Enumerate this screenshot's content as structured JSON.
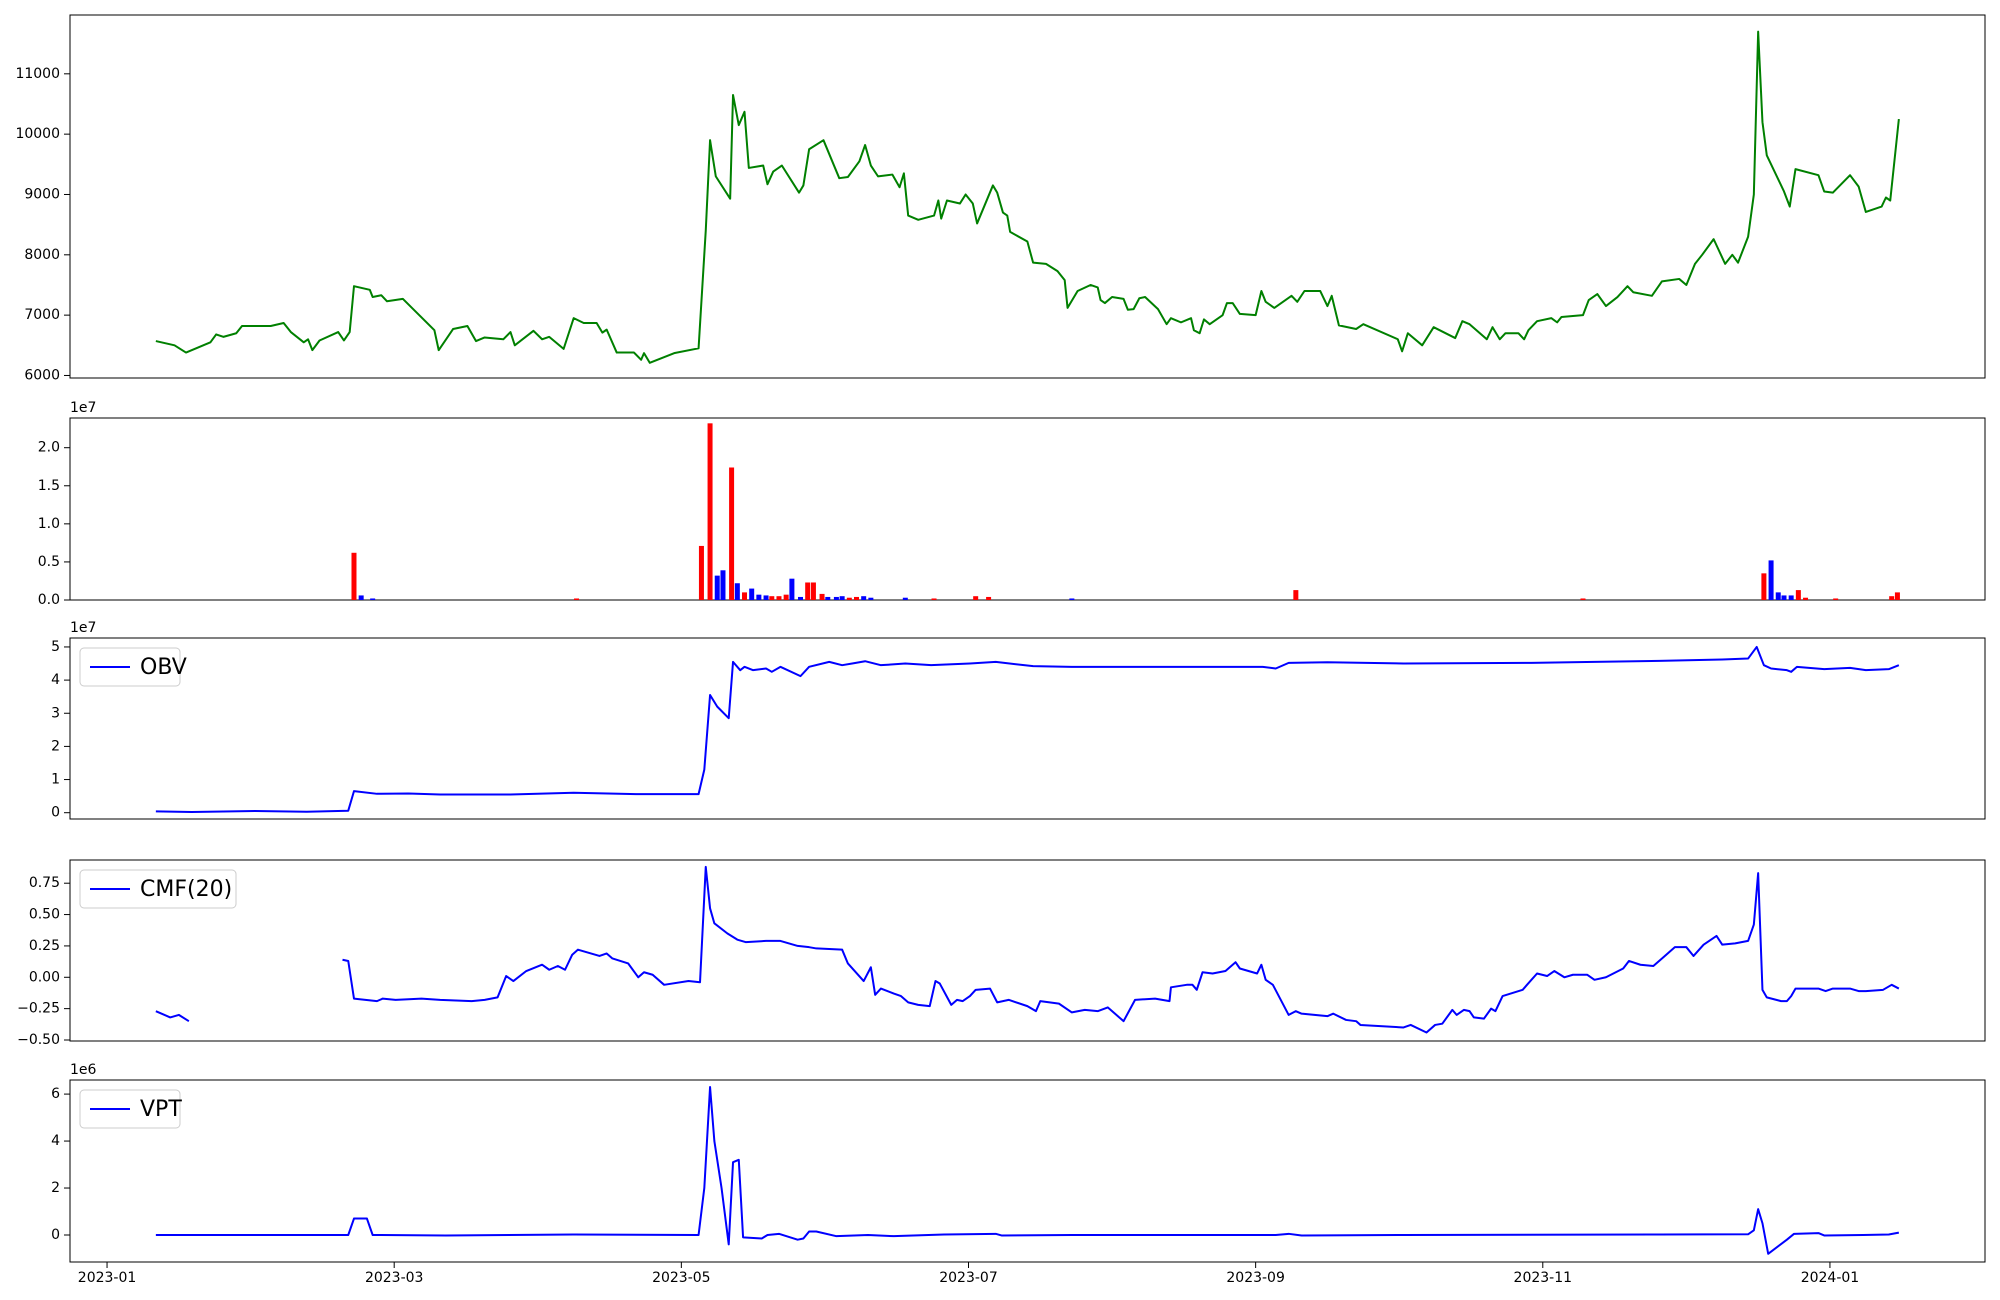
{
  "chart_data": [
    {
      "type": "line",
      "color": "#008000",
      "x": [
        0.34,
        0.47,
        0.55,
        0.72,
        0.76,
        0.81,
        0.9,
        0.94,
        1.14,
        1.23,
        1.28,
        1.37,
        1.4,
        1.43,
        1.48,
        1.61,
        1.65,
        1.69,
        1.72,
        1.83,
        1.85,
        1.91,
        1.95,
        2.06,
        2.28,
        2.31,
        2.41,
        2.51,
        2.57,
        2.63,
        2.76,
        2.81,
        2.84,
        2.97,
        3.03,
        3.08,
        3.18,
        3.25,
        3.32,
        3.41,
        3.45,
        3.48,
        3.55,
        3.67,
        3.72,
        3.74,
        3.78,
        3.95,
        4.12,
        4.17,
        4.2,
        4.24,
        4.34,
        4.36,
        4.4,
        4.44,
        4.47,
        4.57,
        4.6,
        4.64,
        4.7,
        4.82,
        4.85,
        4.89,
        4.99,
        5.1,
        5.16,
        5.24,
        5.28,
        5.32,
        5.37,
        5.47,
        5.52,
        5.55,
        5.58,
        5.65,
        5.76,
        5.79,
        5.81,
        5.85,
        5.94,
        5.98,
        6.03,
        6.06,
        6.17,
        6.2,
        6.24,
        6.27,
        6.29,
        6.41,
        6.45,
        6.54,
        6.62,
        6.67,
        6.69,
        6.76,
        6.85,
        6.9,
        6.92,
        6.95,
        7.0,
        7.08,
        7.11,
        7.15,
        7.19,
        7.23,
        7.32,
        7.38,
        7.41,
        7.48,
        7.55,
        7.57,
        7.61,
        7.64,
        7.68,
        7.77,
        7.8,
        7.84,
        7.89,
        8.0,
        8.04,
        8.07,
        8.13,
        8.25,
        8.29,
        8.34,
        8.45,
        8.5,
        8.53,
        8.58,
        8.7,
        8.75,
        8.99,
        9.02,
        9.06,
        9.16,
        9.24,
        9.39,
        9.44,
        9.49,
        9.61,
        9.65,
        9.7,
        9.74,
        9.83,
        9.87,
        9.9,
        9.96,
        10.06,
        10.1,
        10.13,
        10.28,
        10.32,
        10.38,
        10.44,
        10.52,
        10.59,
        10.63,
        10.76,
        10.83,
        10.95,
        11.0,
        11.06,
        11.11,
        11.19,
        11.27,
        11.32,
        11.36,
        11.43,
        11.47,
        11.5,
        11.53,
        11.56,
        11.68,
        11.72,
        11.76,
        11.92,
        11.96,
        12.02,
        12.14,
        12.2,
        12.25,
        12.36,
        12.39,
        12.42,
        12.48
      ],
      "values": [
        6570,
        6500,
        6380,
        6550,
        6680,
        6640,
        6700,
        6820,
        6820,
        6870,
        6720,
        6550,
        6600,
        6420,
        6580,
        6720,
        6580,
        6720,
        7480,
        7420,
        7300,
        7330,
        7230,
        7270,
        6750,
        6420,
        6770,
        6820,
        6570,
        6630,
        6600,
        6720,
        6500,
        6740,
        6600,
        6640,
        6440,
        6950,
        6870,
        6870,
        6710,
        6760,
        6380,
        6380,
        6260,
        6370,
        6210,
        6370,
        6450,
        8400,
        9900,
        9300,
        8930,
        10650,
        10150,
        10370,
        9440,
        9480,
        9170,
        9380,
        9480,
        9030,
        9150,
        9750,
        9900,
        9270,
        9290,
        9550,
        9820,
        9480,
        9300,
        9330,
        9120,
        9350,
        8650,
        8580,
        8650,
        8900,
        8600,
        8900,
        8850,
        9000,
        8850,
        8520,
        9150,
        9030,
        8700,
        8650,
        8380,
        8220,
        7870,
        7850,
        7730,
        7580,
        7120,
        7400,
        7500,
        7460,
        7250,
        7200,
        7300,
        7270,
        7090,
        7100,
        7280,
        7300,
        7100,
        6850,
        6950,
        6880,
        6950,
        6750,
        6700,
        6930,
        6850,
        7000,
        7200,
        7200,
        7020,
        7000,
        7400,
        7220,
        7120,
        7320,
        7220,
        7400,
        7400,
        7150,
        7320,
        6830,
        6770,
        6850,
        6600,
        6400,
        6700,
        6500,
        6800,
        6620,
        6900,
        6850,
        6600,
        6800,
        6600,
        6700,
        6700,
        6600,
        6750,
        6900,
        6950,
        6880,
        6970,
        7000,
        7250,
        7350,
        7150,
        7300,
        7480,
        7380,
        7320,
        7560,
        7600,
        7500,
        7850,
        8000,
        8260,
        7850,
        8000,
        7870,
        8300,
        9000,
        11700,
        10200,
        9650,
        9050,
        8800,
        9420,
        9320,
        9050,
        9030,
        9320,
        9130,
        8710,
        8800,
        8950,
        8900,
        10250
      ],
      "xlim": [
        -0.258,
        13.08
      ],
      "ylim": [
        5958,
        11975
      ],
      "yticks": [
        6000,
        7000,
        8000,
        9000,
        10000,
        11000
      ]
    },
    {
      "type": "bar",
      "y_offset_label": "1e7",
      "x": [
        1.72,
        1.77,
        1.85,
        3.27,
        4.14,
        4.2,
        4.25,
        4.29,
        4.35,
        4.39,
        4.44,
        4.49,
        4.54,
        4.59,
        4.63,
        4.68,
        4.73,
        4.77,
        4.83,
        4.88,
        4.92,
        4.98,
        5.02,
        5.08,
        5.12,
        5.17,
        5.22,
        5.27,
        5.32,
        5.56,
        5.76,
        6.05,
        6.14,
        6.72,
        8.28,
        10.28,
        11.54,
        11.59,
        11.64,
        11.68,
        11.73,
        11.78,
        11.83,
        12.04,
        12.43,
        12.47
      ],
      "values": [
        6200000,
        600000,
        200000,
        200000,
        7100000,
        23200000,
        3200000,
        3900000,
        17400000,
        2200000,
        1000000,
        1500000,
        700000,
        600000,
        500000,
        500000,
        700000,
        2800000,
        400000,
        2300000,
        2300000,
        800000,
        400000,
        400000,
        500000,
        300000,
        400000,
        500000,
        300000,
        300000,
        200000,
        500000,
        400000,
        200000,
        1300000,
        200000,
        3500000,
        5200000,
        1000000,
        600000,
        600000,
        1300000,
        300000,
        200000,
        500000,
        1000000
      ],
      "colors": [
        "red",
        "blue",
        "blue",
        "red",
        "red",
        "red",
        "blue",
        "blue",
        "red",
        "blue",
        "red",
        "blue",
        "blue",
        "blue",
        "red",
        "red",
        "red",
        "blue",
        "blue",
        "red",
        "red",
        "red",
        "blue",
        "blue",
        "blue",
        "red",
        "red",
        "blue",
        "blue",
        "blue",
        "red",
        "red",
        "red",
        "blue",
        "red",
        "red",
        "red",
        "blue",
        "blue",
        "blue",
        "blue",
        "red",
        "red",
        "red",
        "red",
        "red"
      ],
      "xlim": [
        -0.258,
        13.08
      ],
      "ylim": [
        0,
        23900000
      ],
      "yticks": [
        {
          "value": 0,
          "label": "0.0"
        },
        {
          "value": 5000000,
          "label": "0.5"
        },
        {
          "value": 10000000,
          "label": "1.0"
        },
        {
          "value": 15000000,
          "label": "1.5"
        },
        {
          "value": 20000000,
          "label": "2.0"
        }
      ]
    },
    {
      "type": "line",
      "y_offset_label": "1e7",
      "legend": "upper left",
      "x": [
        0.34,
        0.59,
        1.03,
        1.39,
        1.68,
        1.72,
        1.88,
        2.1,
        2.32,
        2.81,
        3.25,
        3.7,
        4.12,
        4.16,
        4.2,
        4.25,
        4.33,
        4.36,
        4.41,
        4.44,
        4.5,
        4.59,
        4.63,
        4.69,
        4.83,
        4.89,
        5.03,
        5.12,
        5.19,
        5.28,
        5.39,
        5.56,
        5.74,
        6.01,
        6.19,
        6.45,
        6.72,
        7.25,
        8.05,
        8.14,
        8.23,
        8.5,
        9.03,
        9.92,
        10.36,
        10.81,
        11.25,
        11.43,
        11.49,
        11.54,
        11.59,
        11.7,
        11.73,
        11.77,
        11.96,
        12.14,
        12.25,
        12.41,
        12.48
      ],
      "series": [
        {
          "name": "OBV",
          "color": "#0000ff",
          "values": [
            400000,
            200000,
            500000,
            300000,
            600000,
            6500000,
            5700000,
            5800000,
            5500000,
            5500000,
            6000000,
            5600000,
            5600000,
            13000000,
            35500000,
            32000000,
            28500000,
            45500000,
            43000000,
            44000000,
            43000000,
            43500000,
            42500000,
            44000000,
            41200000,
            44000000,
            45500000,
            44500000,
            45000000,
            45700000,
            44500000,
            45000000,
            44500000,
            45000000,
            45500000,
            44200000,
            44000000,
            44000000,
            44000000,
            43500000,
            45200000,
            45400000,
            45000000,
            45200000,
            45500000,
            45800000,
            46200000,
            46500000,
            50000000,
            44500000,
            43500000,
            43000000,
            42500000,
            44000000,
            43300000,
            43700000,
            43000000,
            43300000,
            44500000
          ]
        }
      ],
      "xlim": [
        -0.258,
        13.08
      ],
      "ylim": [
        -1900000,
        52700000
      ],
      "yticks": [
        {
          "value": 0,
          "label": "0"
        },
        {
          "value": 10000000,
          "label": "1"
        },
        {
          "value": 20000000,
          "label": "2"
        },
        {
          "value": 30000000,
          "label": "3"
        },
        {
          "value": 40000000,
          "label": "4"
        },
        {
          "value": 50000000,
          "label": "5"
        }
      ]
    },
    {
      "type": "line",
      "legend": "upper left",
      "x": [
        0.34,
        0.44,
        0.5,
        0.57,
        1.0,
        1.64,
        1.68,
        1.72,
        1.88,
        1.92,
        2.01,
        2.19,
        2.32,
        2.54,
        2.63,
        2.72,
        2.78,
        2.83,
        2.92,
        3.03,
        3.08,
        3.14,
        3.19,
        3.24,
        3.28,
        3.43,
        3.48,
        3.52,
        3.63,
        3.7,
        3.74,
        3.8,
        3.88,
        4.05,
        4.13,
        4.17,
        4.2,
        4.23,
        4.32,
        4.39,
        4.45,
        4.59,
        4.69,
        4.81,
        4.89,
        4.94,
        5.12,
        5.16,
        5.27,
        5.32,
        5.35,
        5.39,
        5.48,
        5.53,
        5.58,
        5.65,
        5.73,
        5.77,
        5.8,
        5.88,
        5.92,
        5.96,
        6.01,
        6.05,
        6.15,
        6.2,
        6.28,
        6.41,
        6.47,
        6.5,
        6.63,
        6.72,
        6.81,
        6.9,
        6.97,
        7.03,
        7.08,
        7.16,
        7.3,
        7.4,
        7.41,
        7.52,
        7.56,
        7.59,
        7.63,
        7.7,
        7.79,
        7.86,
        7.89,
        8.01,
        8.04,
        8.07,
        8.12,
        8.23,
        8.28,
        8.32,
        8.5,
        8.54,
        8.63,
        8.7,
        8.73,
        9.03,
        9.08,
        9.19,
        9.25,
        9.3,
        9.37,
        9.4,
        9.45,
        9.49,
        9.52,
        9.59,
        9.64,
        9.67,
        9.72,
        9.86,
        9.89,
        9.96,
        10.03,
        10.08,
        10.15,
        10.21,
        10.31,
        10.36,
        10.44,
        10.56,
        10.6,
        10.68,
        10.77,
        10.84,
        10.92,
        11.0,
        11.05,
        11.12,
        11.21,
        11.25,
        11.34,
        11.43,
        11.47,
        11.5,
        11.53,
        11.56,
        11.66,
        11.7,
        11.73,
        11.76,
        11.92,
        11.97,
        12.02,
        12.14,
        12.2,
        12.25,
        12.37,
        12.43,
        12.48
      ],
      "series": [
        {
          "name": "CMF(20)",
          "color": "#0000ff",
          "values": [
            -0.27,
            -0.32,
            -0.3,
            -0.35,
            null,
            0.14,
            0.13,
            -0.17,
            -0.19,
            -0.17,
            -0.18,
            -0.17,
            -0.18,
            -0.19,
            -0.18,
            -0.16,
            0.01,
            -0.03,
            0.05,
            0.1,
            0.06,
            0.09,
            0.06,
            0.18,
            0.22,
            0.17,
            0.19,
            0.15,
            0.11,
            0.0,
            0.04,
            0.02,
            -0.06,
            -0.03,
            -0.04,
            0.88,
            0.55,
            0.43,
            0.35,
            0.3,
            0.28,
            0.29,
            0.29,
            0.25,
            0.24,
            0.23,
            0.22,
            0.11,
            -0.03,
            0.08,
            -0.14,
            -0.09,
            -0.13,
            -0.15,
            -0.2,
            -0.22,
            -0.23,
            -0.03,
            -0.05,
            -0.22,
            -0.18,
            -0.19,
            -0.15,
            -0.1,
            -0.09,
            -0.2,
            -0.18,
            -0.23,
            -0.27,
            -0.19,
            -0.21,
            -0.28,
            -0.26,
            -0.27,
            -0.24,
            -0.3,
            -0.35,
            -0.18,
            -0.17,
            -0.19,
            -0.08,
            -0.06,
            -0.06,
            -0.1,
            0.04,
            0.03,
            0.05,
            0.12,
            0.07,
            0.03,
            0.1,
            -0.02,
            -0.06,
            -0.3,
            -0.27,
            -0.29,
            -0.31,
            -0.29,
            -0.34,
            -0.35,
            -0.38,
            -0.4,
            -0.38,
            -0.44,
            -0.38,
            -0.37,
            -0.26,
            -0.3,
            -0.26,
            -0.27,
            -0.32,
            -0.33,
            -0.25,
            -0.27,
            -0.15,
            -0.1,
            -0.06,
            0.03,
            0.01,
            0.05,
            0.0,
            0.02,
            0.02,
            -0.02,
            0.0,
            0.07,
            0.13,
            0.1,
            0.09,
            0.16,
            0.24,
            0.24,
            0.17,
            0.26,
            0.33,
            0.26,
            0.27,
            0.29,
            0.42,
            0.83,
            -0.1,
            -0.16,
            -0.19,
            -0.19,
            -0.15,
            -0.09,
            -0.09,
            -0.11,
            -0.09,
            -0.09,
            -0.11,
            -0.11,
            -0.1,
            -0.06,
            -0.09
          ]
        }
      ],
      "xlim": [
        -0.258,
        13.08
      ],
      "ylim": [
        -0.508,
        0.935
      ],
      "yticks": [
        {
          "value": -0.5,
          "label": "−0.50"
        },
        {
          "value": -0.25,
          "label": "−0.25"
        },
        {
          "value": 0,
          "label": "0.00"
        },
        {
          "value": 0.25,
          "label": "0.25"
        },
        {
          "value": 0.5,
          "label": "0.50"
        },
        {
          "value": 0.75,
          "label": "0.75"
        }
      ]
    },
    {
      "type": "line",
      "y_offset_label": "1e6",
      "legend": "upper left",
      "x": [
        0.34,
        1.68,
        1.72,
        1.81,
        1.85,
        2.36,
        3.25,
        4.12,
        4.16,
        4.2,
        4.23,
        4.28,
        4.33,
        4.36,
        4.4,
        4.43,
        4.56,
        4.6,
        4.68,
        4.81,
        4.85,
        4.89,
        4.94,
        5.08,
        5.3,
        5.48,
        5.83,
        6.19,
        6.23,
        6.72,
        8.14,
        8.23,
        8.32,
        9.03,
        10.81,
        11.43,
        11.47,
        11.5,
        11.53,
        11.57,
        11.7,
        11.75,
        11.92,
        11.96,
        12.23,
        12.41,
        12.48
      ],
      "series": [
        {
          "name": "VPT",
          "color": "#0000ff",
          "values": [
            0,
            0,
            700000,
            700000,
            0,
            -20000,
            20000,
            0,
            2000000,
            6300000,
            4000000,
            2000000,
            -400000,
            3100000,
            3200000,
            -100000,
            -150000,
            0,
            50000,
            -200000,
            -150000,
            150000,
            150000,
            -50000,
            0,
            -50000,
            20000,
            50000,
            -20000,
            0,
            0,
            50000,
            -20000,
            0,
            20000,
            30000,
            200000,
            1100000,
            500000,
            -800000,
            -200000,
            50000,
            80000,
            -20000,
            0,
            20000,
            100000
          ]
        }
      ],
      "xlim": [
        -0.258,
        13.08
      ],
      "ylim": [
        -1150000,
        6600000
      ],
      "yticks": [
        {
          "value": 0,
          "label": "0"
        },
        {
          "value": 2000000,
          "label": "2"
        },
        {
          "value": 4000000,
          "label": "4"
        },
        {
          "value": 6000000,
          "label": "6"
        }
      ],
      "xticks": [
        {
          "value": 0,
          "label": "2023-01"
        },
        {
          "value": 2,
          "label": "2023-03"
        },
        {
          "value": 4,
          "label": "2023-05"
        },
        {
          "value": 6,
          "label": "2023-07"
        },
        {
          "value": 8,
          "label": "2023-09"
        },
        {
          "value": 10,
          "label": "2023-11"
        },
        {
          "value": 12,
          "label": "2024-01"
        }
      ]
    }
  ]
}
